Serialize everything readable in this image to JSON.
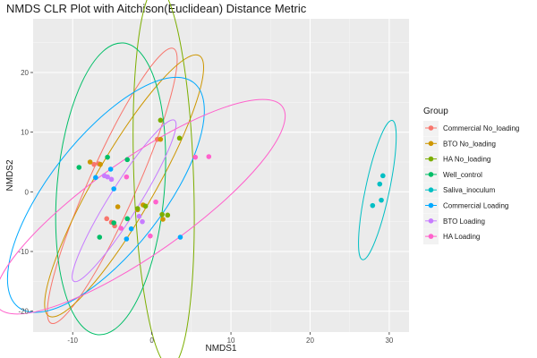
{
  "chart_data": {
    "type": "scatter",
    "title": "NMDS CLR Plot with Aitchison(Euclidean) Distance Metric",
    "xlabel": "NMDS1",
    "ylabel": "NMDS2",
    "xlim": [
      -15,
      32.5
    ],
    "ylim": [
      -23.5,
      29
    ],
    "xticks": [
      -10,
      0,
      10,
      20,
      30
    ],
    "yticks": [
      -20,
      -10,
      0,
      10,
      20
    ],
    "grid": true,
    "legend_position": "right",
    "legend_title": "Group",
    "series": [
      {
        "name": "Commercial No_loading",
        "color": "#F8766D",
        "points": [
          [
            -7.3,
            4.6
          ],
          [
            -6.7,
            4.7
          ],
          [
            -5.7,
            -4.5
          ],
          [
            -5.1,
            -5.1
          ],
          [
            -4.7,
            -5.7
          ],
          [
            0.7,
            8.8
          ]
        ],
        "ellipse": {
          "cx": -5.0,
          "cy": 1.0,
          "rx": 19.0,
          "ry": 4.0,
          "angle": -66
        }
      },
      {
        "name": "BTO No_loading",
        "color": "#CD9600",
        "points": [
          [
            -7.8,
            5.0
          ],
          [
            -6.5,
            4.6
          ],
          [
            -4.3,
            -2.5
          ],
          [
            -1.8,
            -3.0
          ],
          [
            -1.1,
            -2.2
          ],
          [
            1.1,
            8.8
          ],
          [
            1.4,
            -4.6
          ]
        ],
        "ellipse": {
          "cx": -3.5,
          "cy": 1.0,
          "rx": 19.0,
          "ry": 5.0,
          "angle": -60
        }
      },
      {
        "name": "HA No_loading",
        "color": "#7CAE00",
        "points": [
          [
            1.1,
            12.0
          ],
          [
            3.5,
            9.0
          ],
          [
            -1.8,
            -2.8
          ],
          [
            -0.8,
            -2.4
          ],
          [
            1.3,
            -3.8
          ],
          [
            2.0,
            -3.9
          ]
        ],
        "ellipse": {
          "cx": 1.5,
          "cy": 2.5,
          "rx": 24.0,
          "ry": 5.0,
          "angle": -92
        }
      },
      {
        "name": "Well_control",
        "color": "#00BE67",
        "points": [
          [
            -9.2,
            4.1
          ],
          [
            -5.6,
            5.8
          ],
          [
            -6.6,
            -7.6
          ],
          [
            -3.1,
            5.4
          ],
          [
            -3.1,
            -4.5
          ],
          [
            -4.8,
            -5.2
          ]
        ],
        "ellipse": {
          "cx": -5.2,
          "cy": 0.5,
          "rx": 18.5,
          "ry": 9.0,
          "angle": -85
        }
      },
      {
        "name": "Saliva_inoculum",
        "color": "#00BFC4",
        "points": [
          [
            27.9,
            -2.3
          ],
          [
            28.8,
            1.3
          ],
          [
            29.2,
            2.7
          ],
          [
            29.0,
            -1.4
          ]
        ],
        "ellipse": {
          "cx": 28.5,
          "cy": 0.3,
          "rx": 9.0,
          "ry": 2.0,
          "angle": -78
        }
      },
      {
        "name": "Commercial Loading",
        "color": "#00A9FF",
        "points": [
          [
            -5.2,
            3.8
          ],
          [
            -7.1,
            2.4
          ],
          [
            -4.8,
            0.5
          ],
          [
            -3.2,
            -7.9
          ],
          [
            -2.6,
            -6.2
          ],
          [
            3.6,
            -7.6
          ]
        ],
        "ellipse": {
          "cx": -5.8,
          "cy": -0.5,
          "rx": 18.0,
          "ry": 9.5,
          "angle": -52
        }
      },
      {
        "name": "BTO Loading",
        "color": "#C77CFF",
        "points": [
          [
            -6.0,
            2.7
          ],
          [
            -5.6,
            2.5
          ],
          [
            -5.1,
            2.1
          ],
          [
            -1.6,
            -4.1
          ],
          [
            -1.2,
            -5.0
          ]
        ],
        "ellipse": {
          "cx": -3.5,
          "cy": -1.5,
          "rx": 12.0,
          "ry": 2.5,
          "angle": -58
        }
      },
      {
        "name": "HA Loading",
        "color": "#FF61CC",
        "points": [
          [
            5.5,
            5.8
          ],
          [
            7.2,
            5.9
          ],
          [
            -3.2,
            2.5
          ],
          [
            -0.2,
            -7.4
          ],
          [
            -3.9,
            -6.1
          ],
          [
            0.5,
            -1.7
          ]
        ],
        "ellipse": {
          "cx": -1.5,
          "cy": -2.5,
          "rx": 22.0,
          "ry": 8.0,
          "angle": -35
        }
      }
    ]
  }
}
